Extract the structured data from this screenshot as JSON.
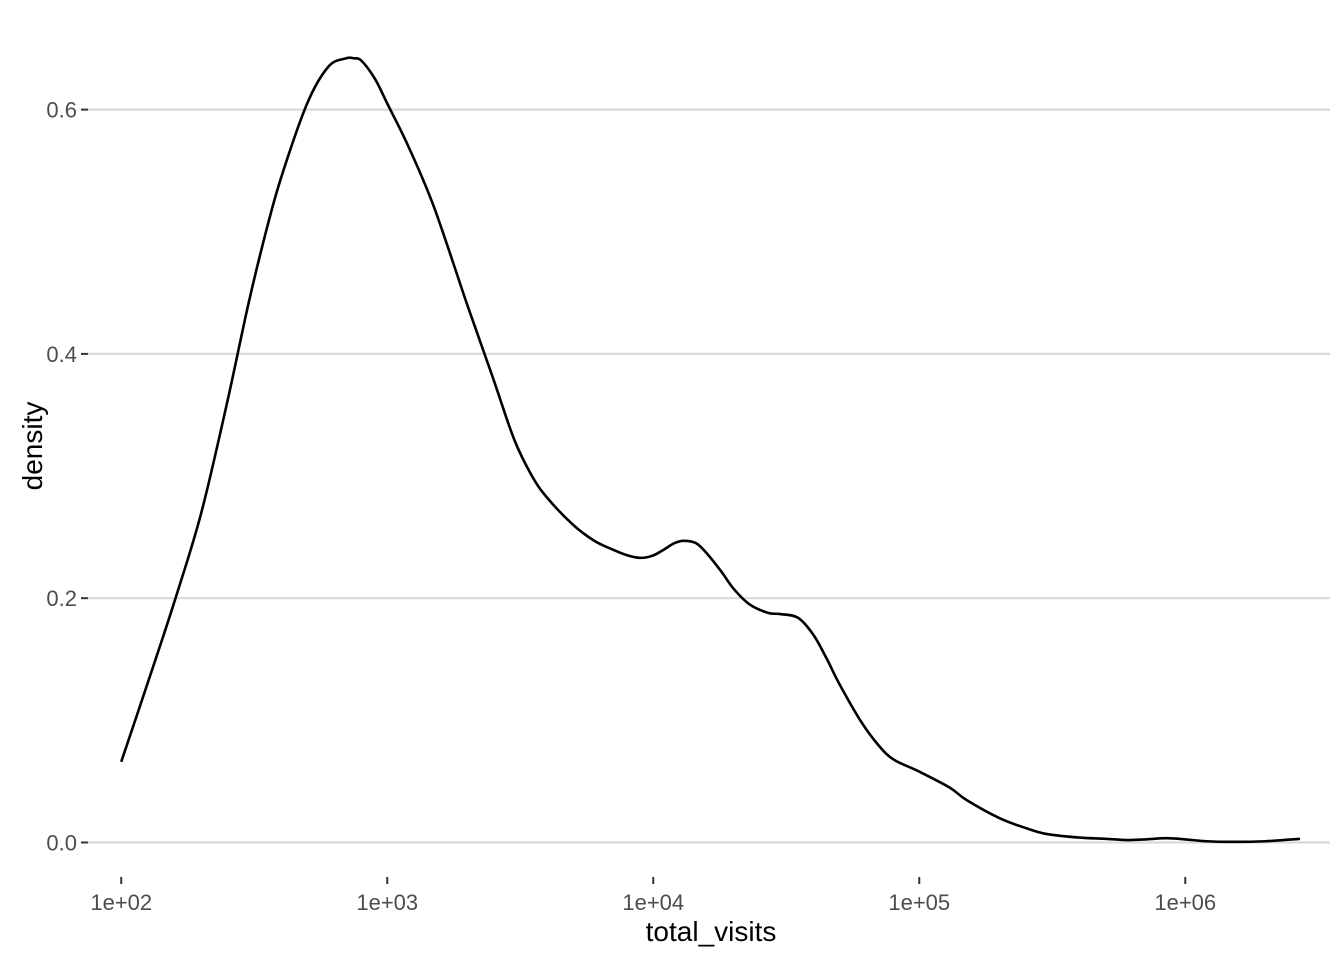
{
  "chart_data": {
    "type": "line",
    "title": "",
    "xlabel": "total_visits",
    "ylabel": "density",
    "x_scale": "log10",
    "xlim": [
      75,
      3500000
    ],
    "ylim": [
      -0.025,
      0.675
    ],
    "x_ticks": [
      100,
      1000,
      10000,
      100000,
      1000000
    ],
    "x_tick_labels": [
      "1e+02",
      "1e+03",
      "1e+04",
      "1e+05",
      "1e+06"
    ],
    "y_ticks": [
      0.0,
      0.2,
      0.4,
      0.6
    ],
    "y_tick_labels": [
      "0.0",
      "0.2",
      "0.4",
      "0.6"
    ],
    "grid": "horizontal major",
    "legend": "none",
    "line_color": "#000000",
    "grid_color": "#d9d9d9",
    "series": [
      {
        "x": [
          100,
          130,
          160,
          200,
          250,
          300,
          350,
          400,
          500,
          600,
          700,
          750,
          800,
          900,
          1000,
          1200,
          1500,
          2000,
          2500,
          3000,
          3500,
          4000,
          5000,
          6000,
          7000,
          8000,
          9000,
          10000,
          11000,
          12000,
          13000,
          14500,
          16000,
          18000,
          20000,
          23000,
          27000,
          30000,
          35000,
          40000,
          45000,
          50000,
          60000,
          70000,
          80000,
          100000,
          130000,
          150000,
          200000,
          250000,
          300000,
          400000,
          500000,
          600000,
          700000,
          850000,
          1000000,
          1200000,
          1500000,
          2000000,
          2700000
        ],
        "y": [
          0.066,
          0.14,
          0.2,
          0.27,
          0.36,
          0.44,
          0.5,
          0.545,
          0.605,
          0.635,
          0.642,
          0.642,
          0.64,
          0.625,
          0.605,
          0.57,
          0.52,
          0.44,
          0.38,
          0.33,
          0.3,
          0.282,
          0.26,
          0.247,
          0.24,
          0.235,
          0.233,
          0.235,
          0.24,
          0.245,
          0.247,
          0.245,
          0.236,
          0.222,
          0.208,
          0.195,
          0.188,
          0.187,
          0.184,
          0.17,
          0.15,
          0.13,
          0.1,
          0.08,
          0.068,
          0.058,
          0.045,
          0.035,
          0.02,
          0.012,
          0.007,
          0.004,
          0.003,
          0.002,
          0.0025,
          0.0035,
          0.0025,
          0.001,
          0.0005,
          0.001,
          0.003
        ]
      }
    ]
  }
}
